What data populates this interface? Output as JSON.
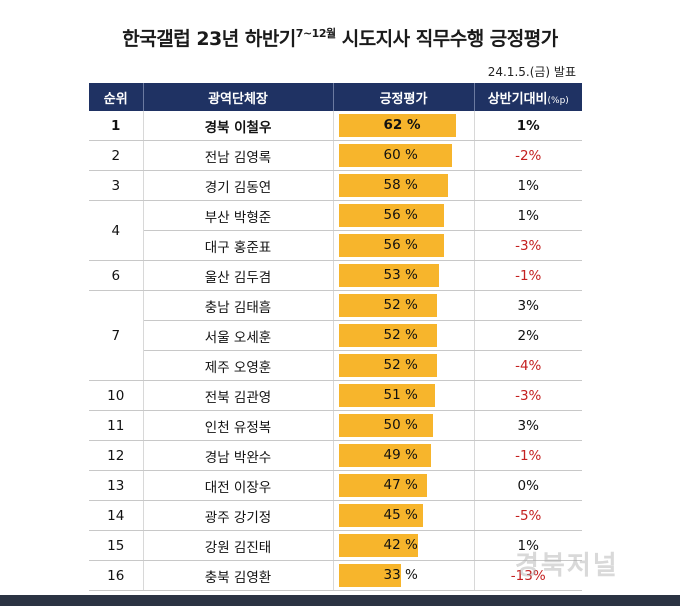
{
  "header": {
    "title_main": "한국갤럽 23년 하반기",
    "title_sup": "7~12월",
    "title_rest": " 시도지사 직무수행 긍정평가",
    "date": "24.1.5.(금) 발표"
  },
  "table": {
    "col_rank": "순위",
    "col_name": "광역단체장",
    "col_rating": "긍정평가",
    "col_change": "상반기대비",
    "col_change_unit": "(%p)"
  },
  "chart_data": {
    "type": "bar",
    "title": "한국갤럽 23년 하반기 7~12월 시도지사 직무수행 긍정평가",
    "unit": "%",
    "rows": [
      {
        "rank": "1",
        "name": "경북 이철우",
        "value": 62,
        "change": "1%"
      },
      {
        "rank": "2",
        "name": "전남 김영록",
        "value": 60,
        "change": "-2%"
      },
      {
        "rank": "3",
        "name": "경기 김동연",
        "value": 58,
        "change": "1%"
      },
      {
        "rank": "4",
        "name": "부산 박형준",
        "value": 56,
        "change": "1%"
      },
      {
        "rank": "",
        "name": "대구 홍준표",
        "value": 56,
        "change": "-3%"
      },
      {
        "rank": "6",
        "name": "울산 김두겸",
        "value": 53,
        "change": "-1%"
      },
      {
        "rank": "7",
        "name": "충남 김태흠",
        "value": 52,
        "change": "3%"
      },
      {
        "rank": "",
        "name": "서울 오세훈",
        "value": 52,
        "change": "2%"
      },
      {
        "rank": "",
        "name": "제주 오영훈",
        "value": 52,
        "change": "-4%"
      },
      {
        "rank": "10",
        "name": "전북 김관영",
        "value": 51,
        "change": "-3%"
      },
      {
        "rank": "11",
        "name": "인천 유정복",
        "value": 50,
        "change": "3%"
      },
      {
        "rank": "12",
        "name": "경남 박완수",
        "value": 49,
        "change": "-1%"
      },
      {
        "rank": "13",
        "name": "대전 이장우",
        "value": 47,
        "change": "0%"
      },
      {
        "rank": "14",
        "name": "광주 강기정",
        "value": 45,
        "change": "-5%"
      },
      {
        "rank": "15",
        "name": "강원 김진태",
        "value": 42,
        "change": "1%"
      },
      {
        "rank": "16",
        "name": "충북 김영환",
        "value": 33,
        "change": "-13%"
      }
    ],
    "bar_color": "#f7b52c",
    "negative_color": "#c42020",
    "header_color": "#1f3263"
  },
  "watermark": "경북저널"
}
